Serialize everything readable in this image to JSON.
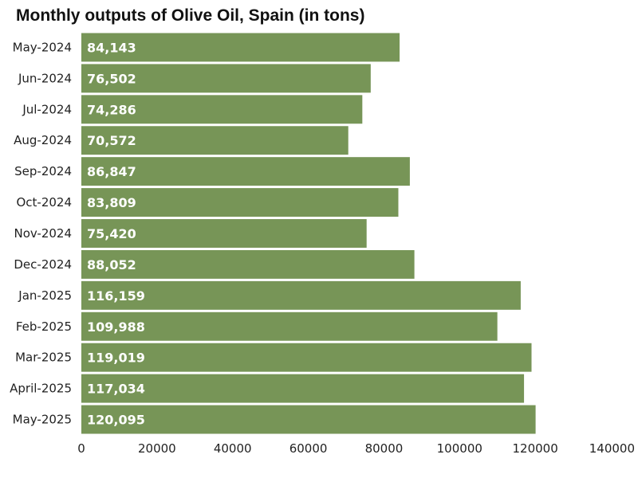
{
  "chart_data": {
    "type": "bar",
    "orientation": "horizontal",
    "title": "Monthly outputs of Olive Oil, Spain (in tons)",
    "xlabel": "",
    "ylabel": "",
    "categories": [
      "May-2024",
      "Jun-2024",
      "Jul-2024",
      "Aug-2024",
      "Sep-2024",
      "Oct-2024",
      "Nov-2024",
      "Dec-2024",
      "Jan-2025",
      "Feb-2025",
      "Mar-2025",
      "April-2025",
      "May-2025"
    ],
    "values": [
      84143,
      76502,
      74286,
      70572,
      86847,
      83809,
      75420,
      88052,
      116159,
      109988,
      119019,
      117034,
      120095
    ],
    "value_labels": [
      "84,143",
      "76,502",
      "74,286",
      "70,572",
      "86,847",
      "83,809",
      "75,420",
      "88,052",
      "116,159",
      "109,988",
      "119,019",
      "117,034",
      "120,095"
    ],
    "xlim": [
      0,
      140000
    ],
    "xticks": [
      0,
      20000,
      40000,
      60000,
      80000,
      100000,
      120000,
      140000
    ],
    "xtick_labels": [
      "0",
      "20000",
      "40000",
      "60000",
      "80000",
      "100000",
      "120000",
      "140000"
    ],
    "bar_color": "#779557",
    "grid": false,
    "legend": "none"
  }
}
